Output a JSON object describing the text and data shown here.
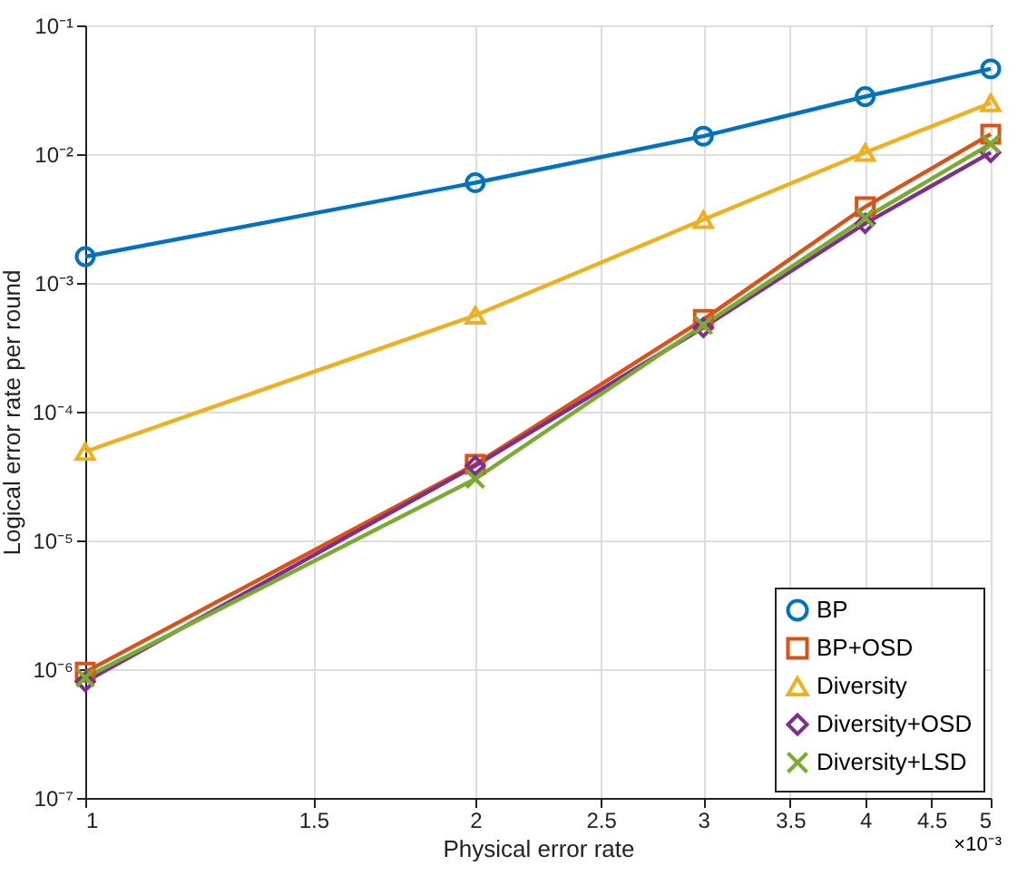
{
  "chart_data": {
    "type": "line",
    "xlabel": "Physical error rate",
    "ylabel": "Logical error rate per round",
    "annotations": [
      "×10⁻³"
    ],
    "x": [
      1,
      2,
      3,
      4,
      5
    ],
    "series": [
      {
        "name": "BP",
        "color": "#0072bd",
        "marker": "circle",
        "values": [
          0.0016,
          0.006,
          0.0138,
          0.028,
          0.046
        ]
      },
      {
        "name": "BP+OSD",
        "color": "#d95319",
        "marker": "square",
        "values": [
          9.5e-07,
          3.9e-05,
          0.00052,
          0.0039,
          0.0143
        ]
      },
      {
        "name": "Diversity",
        "color": "#edb120",
        "marker": "triangle",
        "values": [
          4.9e-05,
          0.00056,
          0.0031,
          0.0103,
          0.025
        ]
      },
      {
        "name": "Diversity+OSD",
        "color": "#7e2f8e",
        "marker": "diamond",
        "values": [
          8e-07,
          3.8e-05,
          0.00045,
          0.0029,
          0.0103
        ]
      },
      {
        "name": "Diversity+LSD",
        "color": "#77ac30",
        "marker": "cross",
        "values": [
          8.6e-07,
          3e-05,
          0.00047,
          0.0032,
          0.012
        ]
      }
    ],
    "log": "xy",
    "xlim": [
      1,
      5
    ],
    "xticks": [
      1,
      1.5,
      2,
      2.5,
      3,
      3.5,
      4,
      4.5,
      5
    ],
    "ylim": [
      1e-07,
      0.1
    ],
    "yticks": [
      {
        "value": 1e-07,
        "label": "10⁻⁷"
      },
      {
        "value": 1e-06,
        "label": "10⁻⁶"
      },
      {
        "value": 1e-05,
        "label": "10⁻⁵"
      },
      {
        "value": 0.0001,
        "label": "10⁻⁴"
      },
      {
        "value": 0.001,
        "label": "10⁻³"
      },
      {
        "value": 0.01,
        "label": "10⁻²"
      },
      {
        "value": 0.1,
        "label": "10⁻¹"
      }
    ],
    "grid": true,
    "legend": "bottom right",
    "line_style": "solid"
  }
}
